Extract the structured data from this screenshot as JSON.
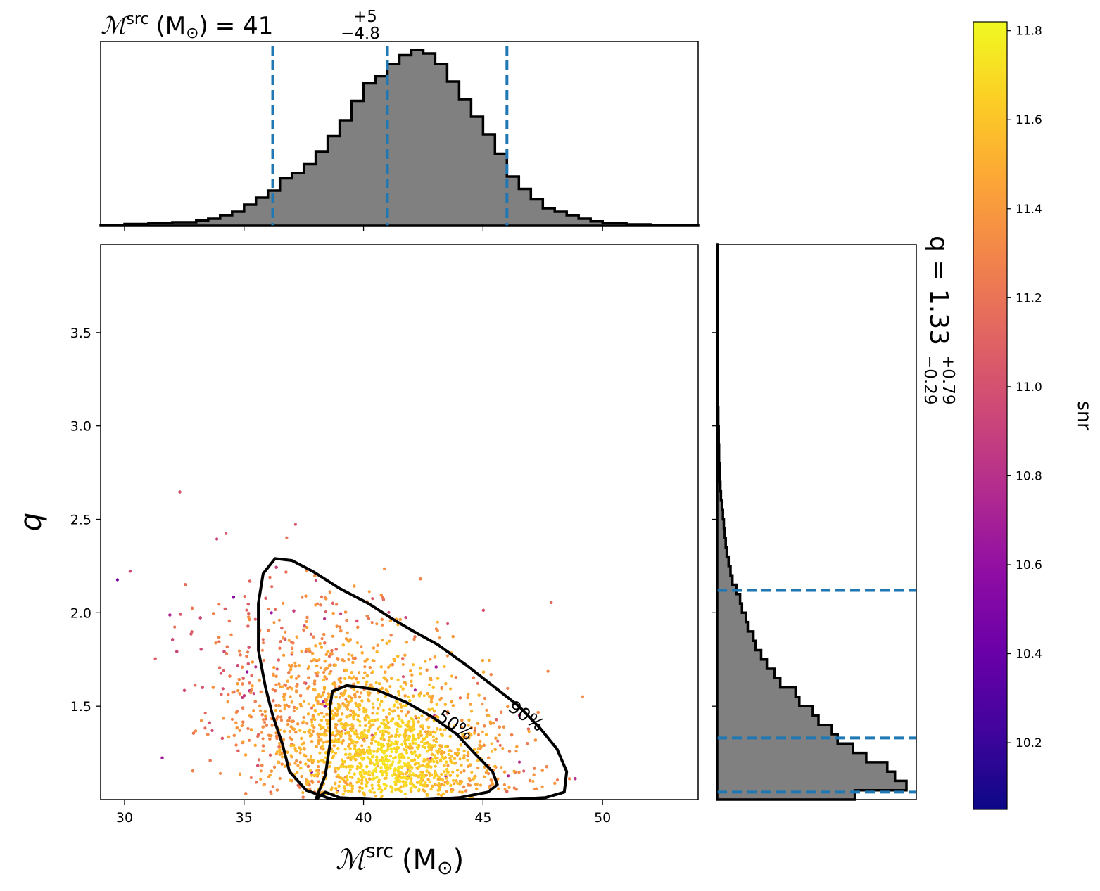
{
  "chart_data": {
    "type": "scatter",
    "title_top": {
      "math_symbol": "ℳ",
      "superscript": "src",
      "unit_open": "(M",
      "unit_sun": "⊙",
      "unit_close": ")",
      "equals": "= 41",
      "err_plus": "+5",
      "err_minus": "−4.8"
    },
    "xlabel": {
      "math_symbol": "ℳ",
      "superscript": "src",
      "unit": "(M",
      "sun": "⊙",
      "close": ")"
    },
    "ylabel": "q",
    "q_title": {
      "text": "q = 1.33",
      "err_plus": "+0.79",
      "err_minus": "−0.29"
    },
    "colorbar_label": "snr",
    "xlim": [
      29,
      54
    ],
    "ylim": [
      1.0,
      3.97
    ],
    "x_ticks": [
      "30",
      "35",
      "40",
      "45",
      "50"
    ],
    "x_tick_values": [
      30,
      35,
      40,
      45,
      50
    ],
    "y_ticks": [
      "1.5",
      "2.0",
      "2.5",
      "3.0",
      "3.5"
    ],
    "y_tick_values": [
      1.5,
      2.0,
      2.5,
      3.0,
      3.5
    ],
    "colorbar": {
      "range": [
        10.05,
        11.82
      ],
      "ticks": [
        "10.2",
        "10.4",
        "10.6",
        "10.8",
        "11.0",
        "11.2",
        "11.4",
        "11.6",
        "11.8"
      ],
      "tick_values": [
        10.2,
        10.4,
        10.6,
        10.8,
        11.0,
        11.2,
        11.4,
        11.6,
        11.8
      ],
      "colormap": "plasma",
      "colormap_stops": [
        "#0d0887",
        "#41049d",
        "#6a00a8",
        "#8f0da4",
        "#b12a90",
        "#cc4778",
        "#e16462",
        "#f2844b",
        "#fca636",
        "#fcce25",
        "#f0f921"
      ]
    },
    "chirp_mass_percentiles": [
      36.2,
      41.0,
      46.0
    ],
    "q_percentiles": [
      1.04,
      1.33,
      2.12
    ],
    "contours": [
      {
        "label": "50%",
        "points": [
          [
            38.0,
            1.0
          ],
          [
            38.4,
            1.13
          ],
          [
            38.6,
            1.3
          ],
          [
            38.6,
            1.5
          ],
          [
            38.7,
            1.58
          ],
          [
            39.3,
            1.61
          ],
          [
            40.5,
            1.59
          ],
          [
            41.8,
            1.52
          ],
          [
            42.9,
            1.44
          ],
          [
            43.9,
            1.35
          ],
          [
            44.7,
            1.24
          ],
          [
            45.4,
            1.15
          ],
          [
            45.6,
            1.08
          ],
          [
            45.2,
            1.04
          ],
          [
            44.0,
            1.01
          ],
          [
            42.5,
            1.0
          ],
          [
            40.5,
            1.0
          ],
          [
            39.0,
            1.01
          ],
          [
            38.4,
            1.04
          ],
          [
            38.0,
            1.0
          ]
        ]
      },
      {
        "label": "90%",
        "points": [
          [
            38.7,
            1.0
          ],
          [
            37.6,
            1.05
          ],
          [
            36.9,
            1.15
          ],
          [
            36.6,
            1.3
          ],
          [
            36.2,
            1.45
          ],
          [
            35.9,
            1.6
          ],
          [
            35.6,
            1.8
          ],
          [
            35.6,
            2.05
          ],
          [
            35.8,
            2.21
          ],
          [
            36.3,
            2.29
          ],
          [
            37.0,
            2.28
          ],
          [
            37.9,
            2.22
          ],
          [
            39.0,
            2.13
          ],
          [
            40.2,
            2.05
          ],
          [
            41.3,
            1.96
          ],
          [
            42.1,
            1.9
          ],
          [
            43.1,
            1.83
          ],
          [
            44.3,
            1.72
          ],
          [
            45.5,
            1.6
          ],
          [
            46.5,
            1.5
          ],
          [
            47.4,
            1.38
          ],
          [
            48.1,
            1.27
          ],
          [
            48.5,
            1.15
          ],
          [
            48.4,
            1.04
          ],
          [
            47.6,
            1.01
          ],
          [
            46.0,
            1.0
          ],
          [
            43.0,
            1.0
          ],
          [
            40.0,
            1.0
          ],
          [
            38.7,
            1.0
          ]
        ]
      }
    ],
    "marginal_hist_chirp_mass": {
      "bin_edges": [
        29,
        30,
        31,
        32,
        33,
        33.5,
        34,
        34.5,
        35,
        35.5,
        36,
        36.5,
        37,
        37.5,
        38,
        38.5,
        39,
        39.5,
        40,
        40.5,
        41,
        41.5,
        42,
        42.5,
        43,
        43.5,
        44,
        44.5,
        45,
        45.5,
        46,
        46.5,
        47,
        47.5,
        48,
        48.5,
        49,
        49.5,
        50,
        51,
        52,
        53,
        54
      ],
      "density": [
        0.005,
        0.01,
        0.015,
        0.02,
        0.03,
        0.04,
        0.06,
        0.08,
        0.12,
        0.16,
        0.2,
        0.27,
        0.3,
        0.35,
        0.42,
        0.51,
        0.6,
        0.71,
        0.81,
        0.85,
        0.92,
        0.97,
        1.0,
        0.98,
        0.92,
        0.82,
        0.72,
        0.62,
        0.52,
        0.41,
        0.28,
        0.21,
        0.15,
        0.1,
        0.08,
        0.06,
        0.04,
        0.025,
        0.015,
        0.008,
        0.004,
        0.002
      ]
    },
    "marginal_hist_q": {
      "bin_edges": [
        1.0,
        1.05,
        1.1,
        1.15,
        1.2,
        1.25,
        1.3,
        1.35,
        1.4,
        1.45,
        1.5,
        1.55,
        1.6,
        1.65,
        1.7,
        1.75,
        1.8,
        1.85,
        1.9,
        1.95,
        2.0,
        2.05,
        2.1,
        2.15,
        2.2,
        2.25,
        2.3,
        2.35,
        2.4,
        2.45,
        2.5,
        2.55,
        2.6,
        2.65,
        2.7,
        2.8,
        2.9,
        3.0,
        3.1,
        3.2,
        3.97
      ],
      "density": [
        0.72,
        0.99,
        0.93,
        0.89,
        0.78,
        0.71,
        0.63,
        0.6,
        0.53,
        0.5,
        0.43,
        0.41,
        0.33,
        0.3,
        0.26,
        0.23,
        0.2,
        0.19,
        0.16,
        0.15,
        0.13,
        0.12,
        0.1,
        0.08,
        0.07,
        0.06,
        0.05,
        0.045,
        0.04,
        0.035,
        0.03,
        0.025,
        0.02,
        0.017,
        0.013,
        0.01,
        0.008,
        0.006,
        0.004,
        0.002
      ]
    }
  }
}
